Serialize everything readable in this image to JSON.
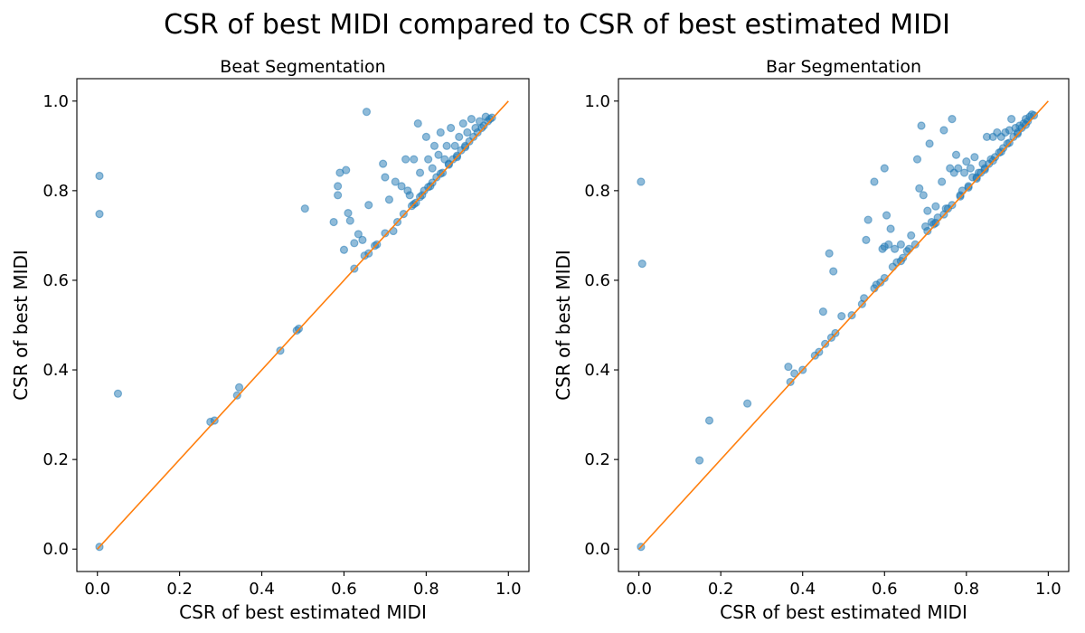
{
  "figure_title": "CSR of best MIDI compared to CSR of best estimated MIDI",
  "colors": {
    "points": "#1f77b4",
    "line": "#ff7f0e"
  },
  "chart_data": [
    {
      "type": "scatter",
      "title": "Beat Segmentation",
      "xlabel": "CSR of best estimated MIDI",
      "ylabel": "CSR of best MIDI",
      "xlim": [
        -0.05,
        1.05
      ],
      "ylim": [
        -0.05,
        1.05
      ],
      "xticks": [
        "0.0",
        "0.2",
        "0.4",
        "0.6",
        "0.8",
        "1.0"
      ],
      "yticks": [
        "0.0",
        "0.2",
        "0.4",
        "0.6",
        "0.8",
        "1.0"
      ],
      "reference_line": {
        "x": [
          0,
          1
        ],
        "y": [
          0,
          1
        ]
      },
      "points": [
        [
          0.005,
          0.833
        ],
        [
          0.005,
          0.748
        ],
        [
          0.05,
          0.347
        ],
        [
          0.005,
          0.005
        ],
        [
          0.275,
          0.284
        ],
        [
          0.285,
          0.287
        ],
        [
          0.34,
          0.343
        ],
        [
          0.345,
          0.361
        ],
        [
          0.445,
          0.443
        ],
        [
          0.485,
          0.488
        ],
        [
          0.49,
          0.492
        ],
        [
          0.505,
          0.76
        ],
        [
          0.575,
          0.73
        ],
        [
          0.585,
          0.81
        ],
        [
          0.59,
          0.84
        ],
        [
          0.605,
          0.846
        ],
        [
          0.585,
          0.79
        ],
        [
          0.61,
          0.75
        ],
        [
          0.615,
          0.733
        ],
        [
          0.6,
          0.668
        ],
        [
          0.625,
          0.683
        ],
        [
          0.635,
          0.703
        ],
        [
          0.645,
          0.69
        ],
        [
          0.655,
          0.976
        ],
        [
          0.625,
          0.626
        ],
        [
          0.66,
          0.768
        ],
        [
          0.65,
          0.655
        ],
        [
          0.66,
          0.66
        ],
        [
          0.675,
          0.677
        ],
        [
          0.68,
          0.68
        ],
        [
          0.695,
          0.86
        ],
        [
          0.7,
          0.83
        ],
        [
          0.71,
          0.78
        ],
        [
          0.72,
          0.71
        ],
        [
          0.725,
          0.82
        ],
        [
          0.73,
          0.73
        ],
        [
          0.74,
          0.81
        ],
        [
          0.75,
          0.87
        ],
        [
          0.755,
          0.8
        ],
        [
          0.76,
          0.79
        ],
        [
          0.77,
          0.87
        ],
        [
          0.775,
          0.773
        ],
        [
          0.78,
          0.95
        ],
        [
          0.785,
          0.84
        ],
        [
          0.79,
          0.79
        ],
        [
          0.8,
          0.92
        ],
        [
          0.805,
          0.87
        ],
        [
          0.81,
          0.81
        ],
        [
          0.815,
          0.85
        ],
        [
          0.82,
          0.9
        ],
        [
          0.825,
          0.83
        ],
        [
          0.83,
          0.88
        ],
        [
          0.835,
          0.93
        ],
        [
          0.84,
          0.84
        ],
        [
          0.845,
          0.87
        ],
        [
          0.85,
          0.9
        ],
        [
          0.855,
          0.86
        ],
        [
          0.86,
          0.94
        ],
        [
          0.865,
          0.87
        ],
        [
          0.87,
          0.9
        ],
        [
          0.875,
          0.875
        ],
        [
          0.88,
          0.92
        ],
        [
          0.885,
          0.89
        ],
        [
          0.89,
          0.95
        ],
        [
          0.895,
          0.9
        ],
        [
          0.9,
          0.93
        ],
        [
          0.905,
          0.91
        ],
        [
          0.91,
          0.96
        ],
        [
          0.915,
          0.92
        ],
        [
          0.92,
          0.94
        ],
        [
          0.925,
          0.93
        ],
        [
          0.93,
          0.955
        ],
        [
          0.935,
          0.94
        ],
        [
          0.94,
          0.945
        ],
        [
          0.945,
          0.965
        ],
        [
          0.95,
          0.955
        ],
        [
          0.955,
          0.96
        ],
        [
          0.96,
          0.963
        ],
        [
          0.77,
          0.77
        ],
        [
          0.795,
          0.8
        ],
        [
          0.815,
          0.818
        ],
        [
          0.835,
          0.838
        ],
        [
          0.855,
          0.858
        ],
        [
          0.875,
          0.878
        ],
        [
          0.895,
          0.897
        ],
        [
          0.7,
          0.705
        ],
        [
          0.745,
          0.748
        ],
        [
          0.765,
          0.766
        ],
        [
          0.785,
          0.786
        ],
        [
          0.805,
          0.808
        ]
      ]
    },
    {
      "type": "scatter",
      "title": "Bar Segmentation",
      "xlabel": "CSR of best estimated MIDI",
      "ylabel": "CSR of best MIDI",
      "xlim": [
        -0.05,
        1.05
      ],
      "ylim": [
        -0.05,
        1.05
      ],
      "xticks": [
        "0.0",
        "0.2",
        "0.4",
        "0.6",
        "0.8",
        "1.0"
      ],
      "yticks": [
        "0.0",
        "0.2",
        "0.4",
        "0.6",
        "0.8",
        "1.0"
      ],
      "reference_line": {
        "x": [
          0,
          1
        ],
        "y": [
          0,
          1
        ]
      },
      "points": [
        [
          0.005,
          0.82
        ],
        [
          0.008,
          0.637
        ],
        [
          0.005,
          0.005
        ],
        [
          0.148,
          0.198
        ],
        [
          0.172,
          0.287
        ],
        [
          0.265,
          0.325
        ],
        [
          0.365,
          0.407
        ],
        [
          0.37,
          0.373
        ],
        [
          0.38,
          0.392
        ],
        [
          0.4,
          0.4
        ],
        [
          0.43,
          0.432
        ],
        [
          0.44,
          0.44
        ],
        [
          0.45,
          0.53
        ],
        [
          0.455,
          0.458
        ],
        [
          0.465,
          0.66
        ],
        [
          0.47,
          0.472
        ],
        [
          0.475,
          0.62
        ],
        [
          0.48,
          0.482
        ],
        [
          0.495,
          0.52
        ],
        [
          0.52,
          0.522
        ],
        [
          0.545,
          0.547
        ],
        [
          0.55,
          0.56
        ],
        [
          0.555,
          0.69
        ],
        [
          0.56,
          0.735
        ],
        [
          0.575,
          0.582
        ],
        [
          0.575,
          0.82
        ],
        [
          0.58,
          0.59
        ],
        [
          0.59,
          0.595
        ],
        [
          0.595,
          0.67
        ],
        [
          0.6,
          0.85
        ],
        [
          0.6,
          0.675
        ],
        [
          0.605,
          0.745
        ],
        [
          0.61,
          0.68
        ],
        [
          0.615,
          0.715
        ],
        [
          0.62,
          0.63
        ],
        [
          0.625,
          0.67
        ],
        [
          0.63,
          0.64
        ],
        [
          0.64,
          0.68
        ],
        [
          0.645,
          0.65
        ],
        [
          0.655,
          0.665
        ],
        [
          0.66,
          0.67
        ],
        [
          0.665,
          0.7
        ],
        [
          0.675,
          0.68
        ],
        [
          0.68,
          0.87
        ],
        [
          0.685,
          0.805
        ],
        [
          0.69,
          0.945
        ],
        [
          0.695,
          0.79
        ],
        [
          0.7,
          0.72
        ],
        [
          0.705,
          0.755
        ],
        [
          0.71,
          0.905
        ],
        [
          0.715,
          0.73
        ],
        [
          0.72,
          0.725
        ],
        [
          0.725,
          0.765
        ],
        [
          0.73,
          0.74
        ],
        [
          0.74,
          0.82
        ],
        [
          0.745,
          0.935
        ],
        [
          0.75,
          0.76
        ],
        [
          0.755,
          0.76
        ],
        [
          0.76,
          0.85
        ],
        [
          0.765,
          0.96
        ],
        [
          0.77,
          0.84
        ],
        [
          0.775,
          0.88
        ],
        [
          0.78,
          0.85
        ],
        [
          0.785,
          0.79
        ],
        [
          0.79,
          0.8
        ],
        [
          0.795,
          0.84
        ],
        [
          0.8,
          0.865
        ],
        [
          0.805,
          0.81
        ],
        [
          0.81,
          0.85
        ],
        [
          0.815,
          0.83
        ],
        [
          0.82,
          0.875
        ],
        [
          0.825,
          0.83
        ],
        [
          0.83,
          0.84
        ],
        [
          0.835,
          0.84
        ],
        [
          0.84,
          0.86
        ],
        [
          0.845,
          0.85
        ],
        [
          0.85,
          0.92
        ],
        [
          0.855,
          0.86
        ],
        [
          0.86,
          0.87
        ],
        [
          0.865,
          0.92
        ],
        [
          0.87,
          0.875
        ],
        [
          0.875,
          0.93
        ],
        [
          0.88,
          0.885
        ],
        [
          0.885,
          0.92
        ],
        [
          0.89,
          0.895
        ],
        [
          0.895,
          0.93
        ],
        [
          0.9,
          0.905
        ],
        [
          0.905,
          0.935
        ],
        [
          0.91,
          0.96
        ],
        [
          0.915,
          0.92
        ],
        [
          0.92,
          0.94
        ],
        [
          0.925,
          0.93
        ],
        [
          0.93,
          0.945
        ],
        [
          0.935,
          0.94
        ],
        [
          0.94,
          0.95
        ],
        [
          0.945,
          0.96
        ],
        [
          0.95,
          0.955
        ],
        [
          0.955,
          0.965
        ],
        [
          0.96,
          0.97
        ],
        [
          0.965,
          0.968
        ],
        [
          0.705,
          0.71
        ],
        [
          0.725,
          0.728
        ],
        [
          0.745,
          0.747
        ],
        [
          0.765,
          0.768
        ],
        [
          0.785,
          0.787
        ],
        [
          0.805,
          0.807
        ],
        [
          0.825,
          0.827
        ],
        [
          0.845,
          0.847
        ],
        [
          0.865,
          0.867
        ],
        [
          0.885,
          0.887
        ],
        [
          0.905,
          0.907
        ],
        [
          0.925,
          0.927
        ],
        [
          0.945,
          0.947
        ],
        [
          0.6,
          0.605
        ],
        [
          0.64,
          0.643
        ]
      ]
    }
  ]
}
